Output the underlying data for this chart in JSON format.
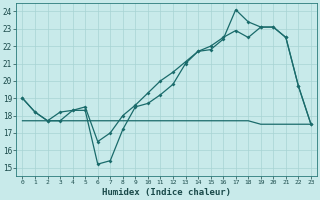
{
  "xlabel": "Humidex (Indice chaleur)",
  "bg_color": "#c8eaea",
  "grid_color": "#a8d4d4",
  "line_color": "#1a6b6b",
  "xlim": [
    -0.5,
    23.5
  ],
  "ylim": [
    14.5,
    24.5
  ],
  "xticks": [
    0,
    1,
    2,
    3,
    4,
    5,
    6,
    7,
    8,
    9,
    10,
    11,
    12,
    13,
    14,
    15,
    16,
    17,
    18,
    19,
    20,
    21,
    22,
    23
  ],
  "yticks": [
    15,
    16,
    17,
    18,
    19,
    20,
    21,
    22,
    23,
    24
  ],
  "line1_x": [
    0,
    1,
    2,
    3,
    4,
    5,
    6,
    7,
    8,
    9,
    10,
    11,
    12,
    13,
    14,
    15,
    16,
    17,
    18,
    19,
    20,
    21,
    22,
    23
  ],
  "line1_y": [
    19,
    18.2,
    17.7,
    17.7,
    18.3,
    18.3,
    15.2,
    15.4,
    17.2,
    18.5,
    18.7,
    19.2,
    19.8,
    21.0,
    21.7,
    21.8,
    22.4,
    24.1,
    23.4,
    23.1,
    23.1,
    22.5,
    19.7,
    17.5
  ],
  "line2_x": [
    0,
    1,
    2,
    3,
    4,
    5,
    6,
    7,
    8,
    9,
    10,
    11,
    12,
    13,
    14,
    15,
    16,
    17,
    18,
    19,
    20,
    21,
    22,
    23
  ],
  "line2_y": [
    19,
    18.2,
    17.7,
    18.2,
    18.3,
    18.5,
    16.5,
    17.0,
    18.0,
    18.6,
    19.3,
    20.0,
    20.5,
    21.1,
    21.7,
    22.0,
    22.5,
    22.9,
    22.5,
    23.1,
    23.1,
    22.5,
    19.7,
    17.5
  ],
  "line3_x": [
    0,
    1,
    2,
    3,
    4,
    5,
    6,
    7,
    8,
    9,
    10,
    11,
    12,
    13,
    14,
    15,
    16,
    17,
    18,
    19,
    20,
    21,
    22,
    23
  ],
  "line3_y": [
    17.7,
    17.7,
    17.7,
    17.7,
    17.7,
    17.7,
    17.7,
    17.7,
    17.7,
    17.7,
    17.7,
    17.7,
    17.7,
    17.7,
    17.7,
    17.7,
    17.7,
    17.7,
    17.7,
    17.5,
    17.5,
    17.5,
    17.5,
    17.5
  ]
}
